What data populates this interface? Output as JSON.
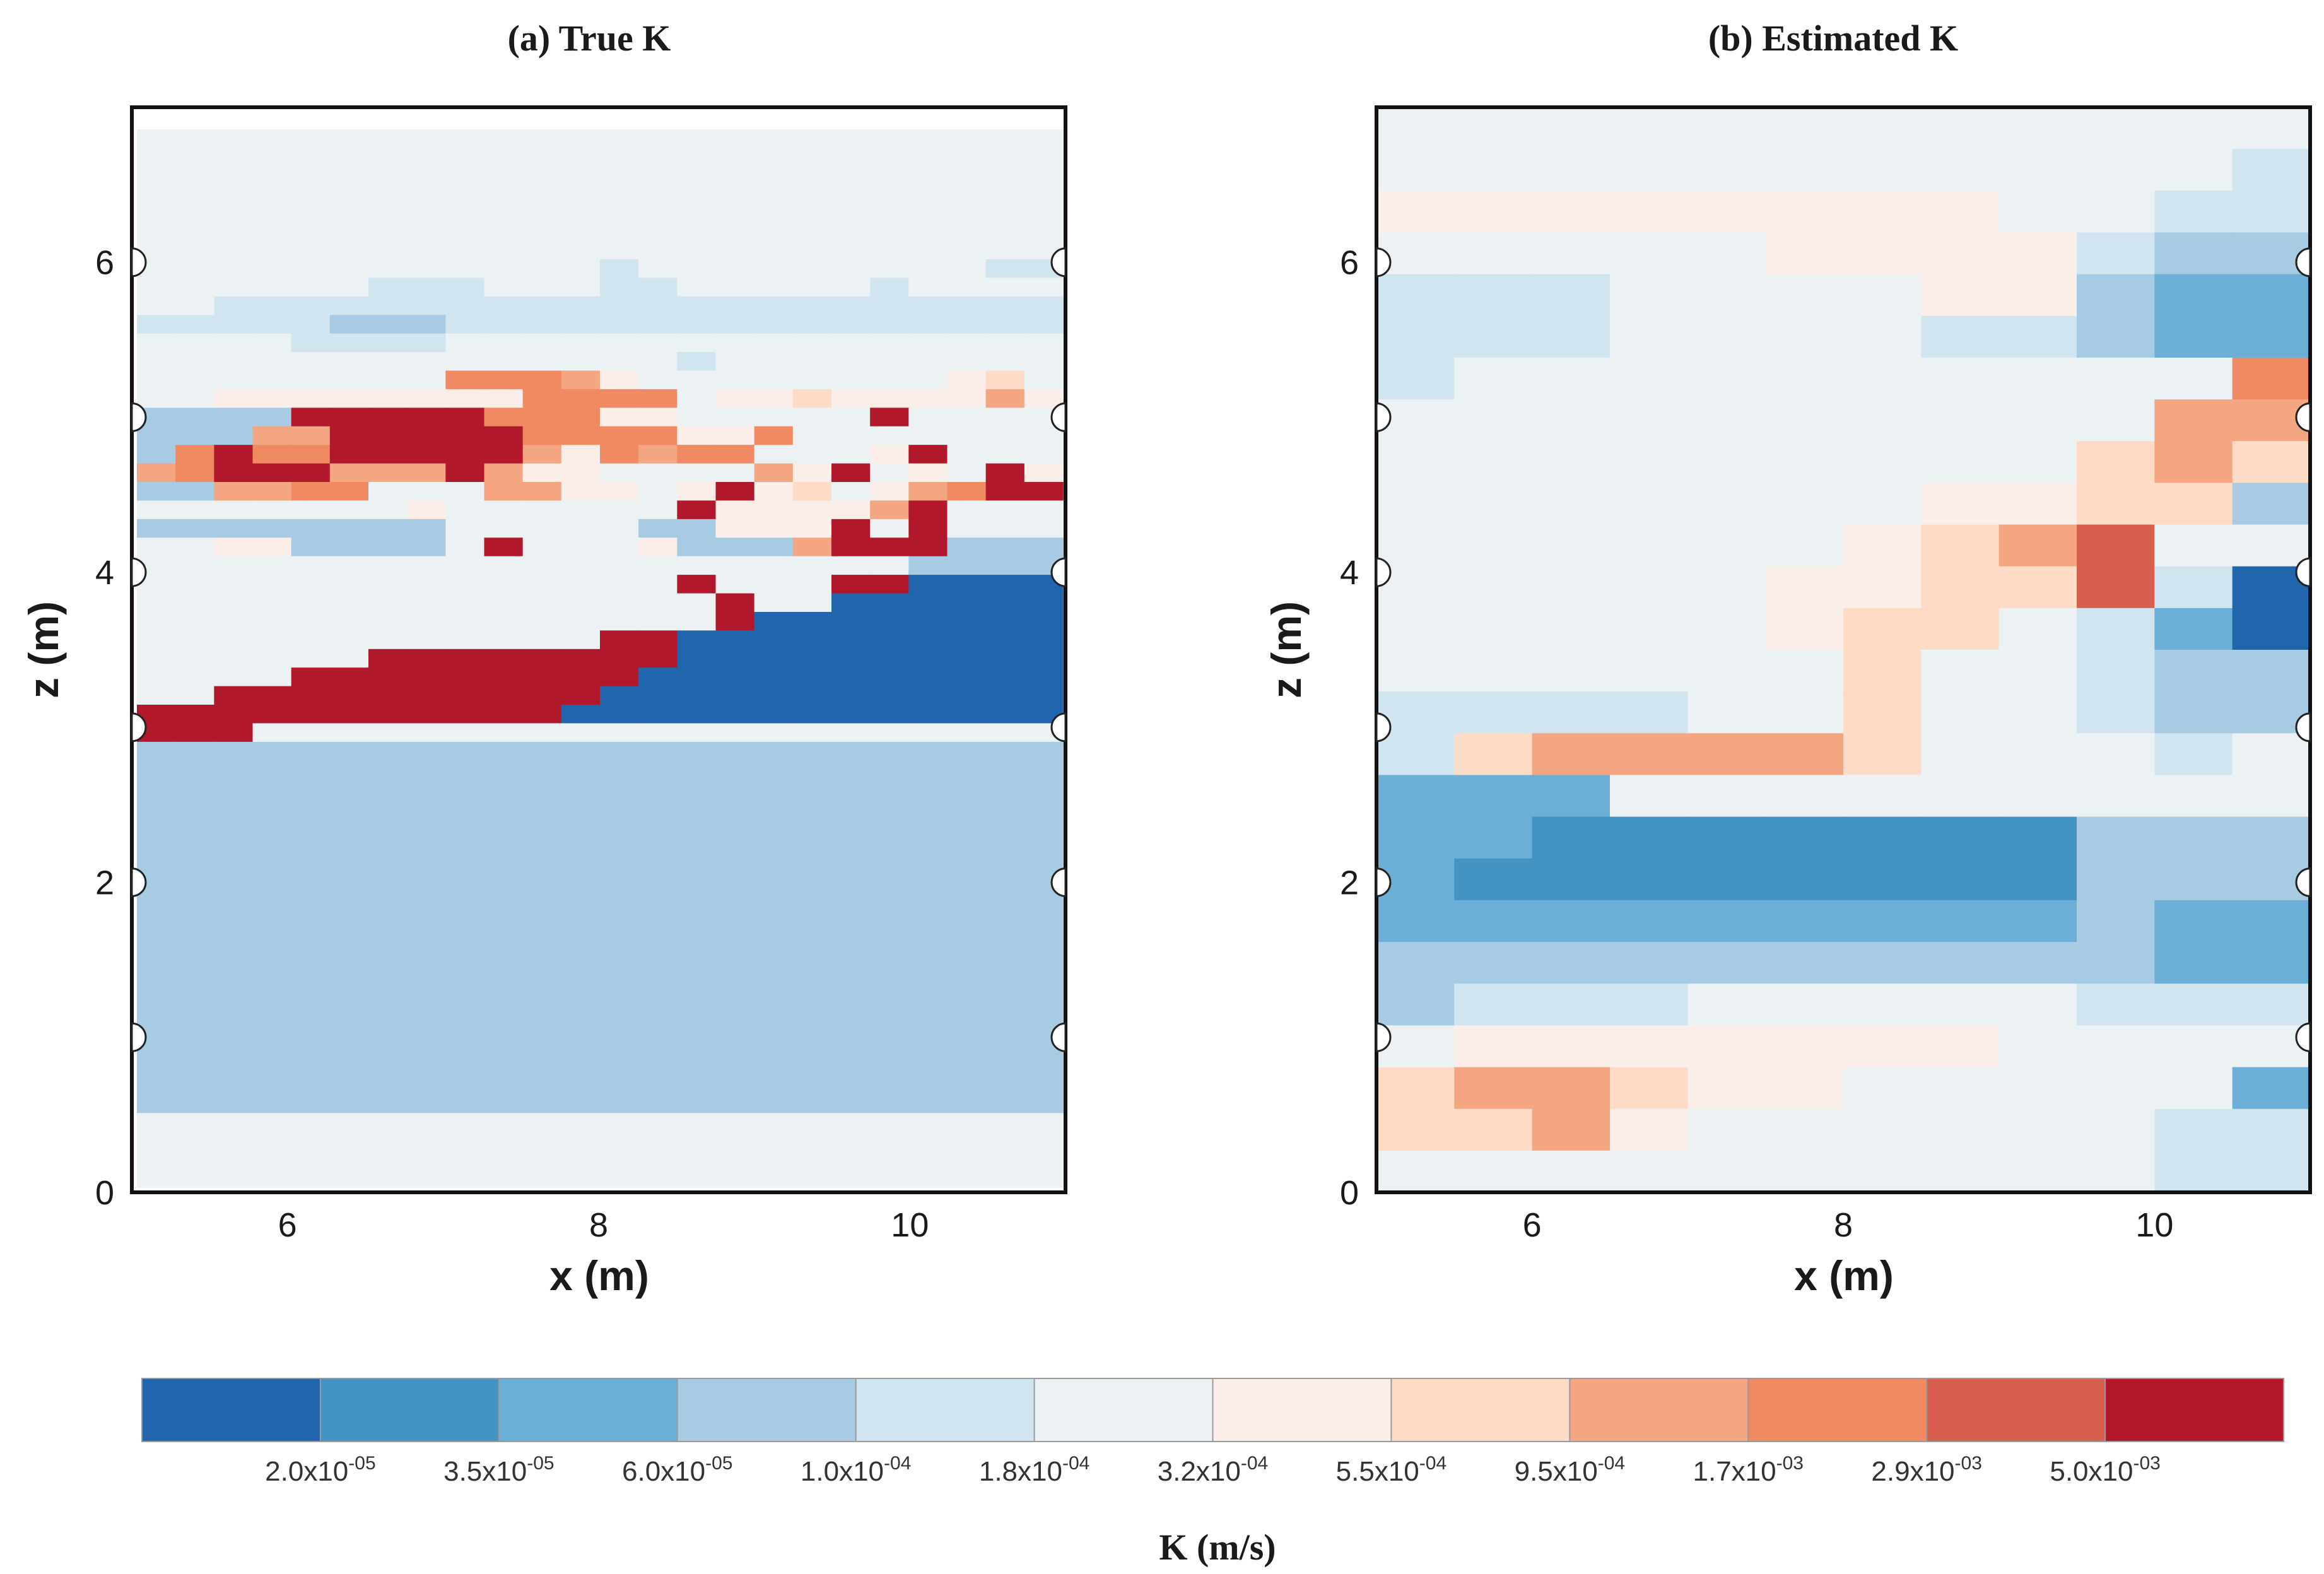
{
  "chart_data": {
    "type": "heatmap",
    "colorbar": {
      "title": "K (m/s)",
      "bin_colors": [
        "#2166ac",
        "#4393c3",
        "#6baed6",
        "#a6cbe3",
        "#d1e5f0",
        "#ecf1f4",
        "#fbeee9",
        "#fddbc7",
        "#f4a582",
        "#ef8a62",
        "#d6604d",
        "#b2182b"
      ],
      "tick_mantissas": [
        "2.0",
        "3.5",
        "6.0",
        "1.0",
        "1.8",
        "3.2",
        "5.5",
        "9.5",
        "1.7",
        "2.9",
        "5.0"
      ],
      "tick_exponents": [
        "-05",
        "-05",
        "-05",
        "-04",
        "-04",
        "-04",
        "-04",
        "-04",
        "-03",
        "-03",
        "-03"
      ]
    },
    "panels": [
      {
        "id": "true",
        "title": "(a) True K",
        "xlabel": "x (m)",
        "ylabel": "z (m)",
        "xlim": [
          5,
          11
        ],
        "ylim": [
          0,
          7
        ],
        "xticks": [
          "6",
          "8",
          "10"
        ],
        "yticks": [
          "0",
          "2",
          "4",
          "6"
        ],
        "ports_left_z": [
          1,
          2,
          3,
          4,
          5,
          6
        ],
        "ports_right_z": [
          1,
          2,
          3,
          4,
          5,
          6
        ],
        "cell_dx": 0.25,
        "cell_dz": 0.125,
        "zmin": 0.0625,
        "description": "bin index per 0.25 x 0.125 m cell, rows listed from top (z=6.9) to bottom (z=0.06); cell is empty where value is -1",
        "rows": [
          "555555555555555555555555",
          "555555555555555555555555",
          "555555555555555555555555",
          "555555555555555555555555",
          "555555555555555555555555",
          "555555555555555555555555",
          "555555555555555555555555",
          "555555555555455555555544",
          "555555444555445555545555",
          "554444444444444444444444",
          "444443334444444444444444",
          "555544445555555555555555",
          "555555555555554555555555",
          "555555559998655555555675",
          "556666666699995667666686",
          "3333BBBBB9996655555B5555",
          "33388BBBBB99996695555555",
          "39B99BBBBB8698995556B555",
          "89BBB888B866555586B565B6",
          "338899555886656B675689BB",
          "55555556555555B66668B555",
          "333333335555533666B5B555",
          "556633335B55563338BBB333",
          "555555555555555555553333",
          "55555555555555B555BB0000",
          "555555555555555B55000000",
          "555555555555555B00000000",
          "555555555555BB0000000000",
          "555555BBBBBBBB0000000000",
          "5555BBBBBBBBB00000000000",
          "55BBBBBBBBBB000000000000",
          "BBBBBBBBBBB0000000000000",
          "BBB555555555555555555555",
          "333333333333333333333333",
          "333333333333333333333333",
          "333333333333333333333333",
          "333333333333333333333333",
          "333333333333333333333333",
          "333333333333333333333333",
          "333333333333333333333333",
          "333333333333333333333333",
          "333333333333333333333333",
          "333333333333333333333333",
          "333333333333333333333333",
          "333333333333333333333333",
          "333333333333333333333333",
          "333333333333333333333333",
          "333333333333333333333333",
          "333333333333333333333333",
          "333333333333333333333333",
          "333333333333333333333333",
          "333333333333333333333333",
          "333333333333333333333333",
          "555555555555555555555555",
          "555555555555555555555555",
          "555555555555555555555555",
          "555555555555555555555555"
        ]
      },
      {
        "id": "estimated",
        "title": "(b) Estimated K",
        "xlabel": "x (m)",
        "ylabel": "z (m)",
        "xlim": [
          5,
          11
        ],
        "ylim": [
          0,
          7
        ],
        "xticks": [
          "6",
          "8",
          "10"
        ],
        "yticks": [
          "0",
          "2",
          "4",
          "6"
        ],
        "ports_left_z": [
          1,
          2,
          3,
          4,
          5,
          6
        ],
        "ports_right_z": [
          1,
          2,
          3,
          4,
          5,
          6
        ],
        "cell_dx": 0.5,
        "cell_dz": 0.25,
        "zmin": 0.25,
        "description": "bin index per 0.5 x 0.25 m cell, rows listed from top to bottom",
        "rows": [
          "555555555555",
          "555555555554",
          "666666665544",
          "555556666433",
          "444555566322",
          "444555544322",
          "455555555559",
          "555555555588",
          "555555555787",
          "555555566773",
          "555555678A55",
          "555556677A40",
          "555556775420",
          "555555755433",
          "444455755433",
          "478888755545",
          "222555555555",
          "221111111333",
          "211111111333",
          "222222222322",
          "333333333322",
          "344455555444",
          "566666665555",
          "788766555552",
          "778655555544",
          "555555555544"
        ]
      }
    ]
  }
}
